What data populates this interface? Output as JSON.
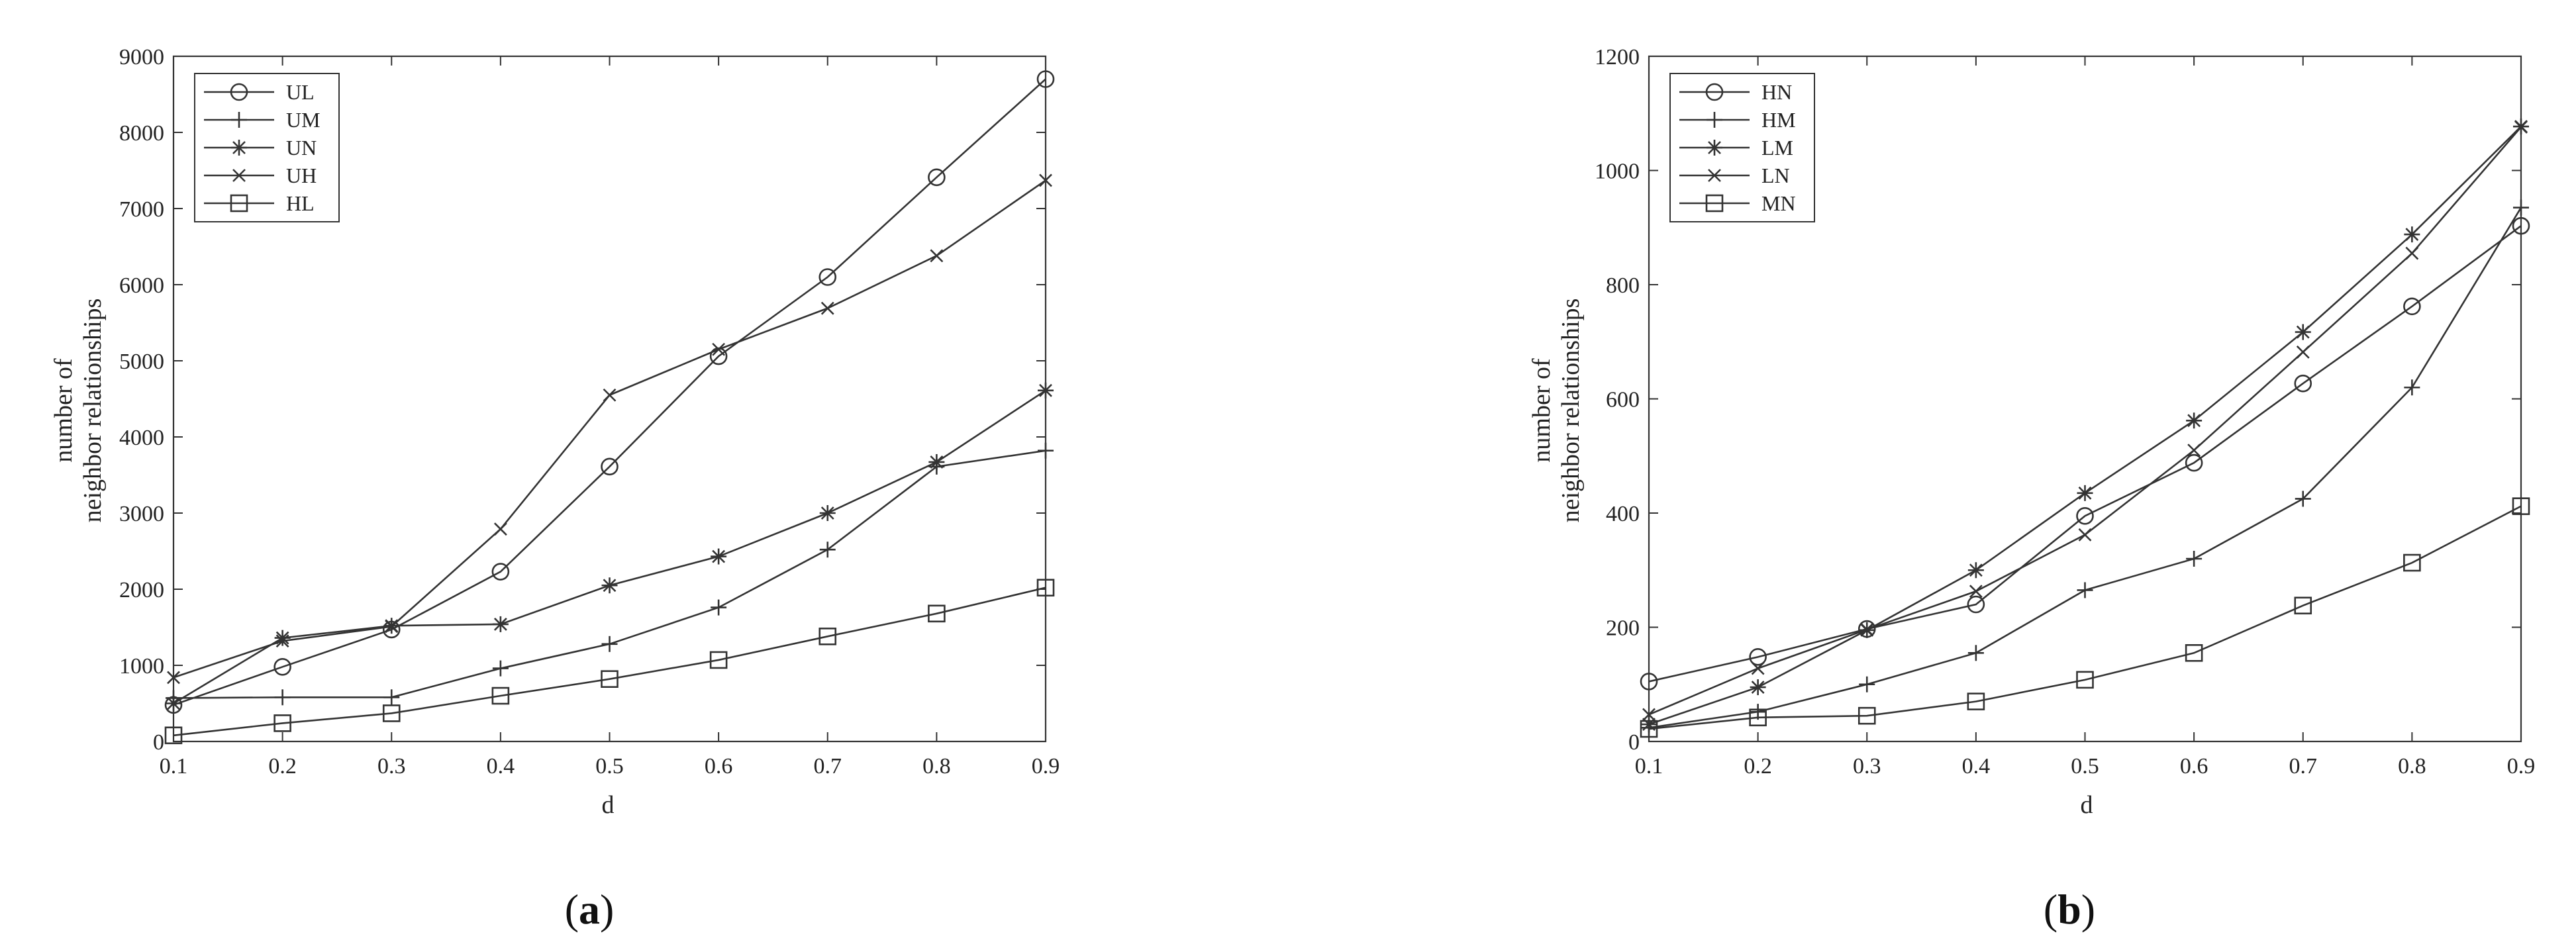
{
  "chart_data": [
    {
      "type": "line",
      "panel_label": "(a)",
      "panel_letter": "a",
      "xlabel": "d",
      "ylabel_lines": [
        "number of",
        "neighbor relationships"
      ],
      "x": [
        0.1,
        0.2,
        0.3,
        0.4,
        0.5,
        0.6,
        0.7,
        0.8,
        0.9
      ],
      "xlim": [
        0.1,
        0.9
      ],
      "ylim": [
        0,
        9000
      ],
      "yticks": [
        0,
        1000,
        2000,
        3000,
        4000,
        5000,
        6000,
        7000,
        8000,
        9000
      ],
      "xticks": [
        0.1,
        0.2,
        0.3,
        0.4,
        0.5,
        0.6,
        0.7,
        0.8,
        0.9
      ],
      "legend_position": "top-left",
      "grid": false,
      "series": [
        {
          "name": "UL",
          "marker": "circle",
          "values": [
            480,
            980,
            1470,
            2230,
            3610,
            5060,
            6100,
            7410,
            8700
          ]
        },
        {
          "name": "UM",
          "marker": "plus",
          "values": [
            570,
            580,
            580,
            960,
            1280,
            1760,
            2520,
            3610,
            3820
          ]
        },
        {
          "name": "UN",
          "marker": "asterisk",
          "values": [
            500,
            1360,
            1520,
            1540,
            2050,
            2430,
            3000,
            3670,
            4610
          ]
        },
        {
          "name": "UH",
          "marker": "cross",
          "values": [
            840,
            1320,
            1510,
            2790,
            4550,
            5150,
            5690,
            6380,
            7370
          ]
        },
        {
          "name": "HL",
          "marker": "square",
          "values": [
            80,
            240,
            370,
            600,
            820,
            1070,
            1380,
            1680,
            2020
          ]
        }
      ]
    },
    {
      "type": "line",
      "panel_label": "(b)",
      "panel_letter": "b",
      "xlabel": "d",
      "ylabel_lines": [
        "number of",
        "neighbor relationships"
      ],
      "x": [
        0.1,
        0.2,
        0.3,
        0.4,
        0.5,
        0.6,
        0.7,
        0.8,
        0.9
      ],
      "xlim": [
        0.1,
        0.9
      ],
      "ylim": [
        0,
        1200
      ],
      "yticks": [
        0,
        200,
        400,
        600,
        800,
        1000,
        1200
      ],
      "xticks": [
        0.1,
        0.2,
        0.3,
        0.4,
        0.5,
        0.6,
        0.7,
        0.8,
        0.9
      ],
      "legend_position": "top-left",
      "grid": false,
      "series": [
        {
          "name": "HN",
          "marker": "circle",
          "values": [
            105,
            148,
            197,
            240,
            395,
            488,
            627,
            762,
            903
          ]
        },
        {
          "name": "HM",
          "marker": "plus",
          "values": [
            24,
            52,
            100,
            155,
            265,
            320,
            425,
            620,
            935
          ]
        },
        {
          "name": "LM",
          "marker": "asterisk",
          "values": [
            30,
            95,
            195,
            300,
            435,
            562,
            717,
            888,
            1077
          ]
        },
        {
          "name": "LN",
          "marker": "cross",
          "values": [
            47,
            128,
            196,
            263,
            362,
            510,
            682,
            855,
            1076
          ]
        },
        {
          "name": "MN",
          "marker": "square",
          "values": [
            22,
            42,
            45,
            70,
            108,
            155,
            238,
            313,
            412
          ]
        }
      ]
    }
  ]
}
